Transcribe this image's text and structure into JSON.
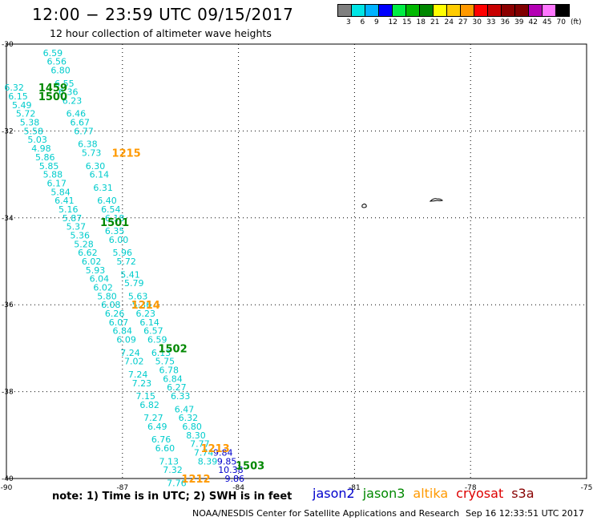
{
  "title": "12:00 − 23:59 UTC 09/15/2017",
  "subtitle": "12 hour collection of altimeter wave heights",
  "colorbar": {
    "colors": [
      "#7f7f7f",
      "#00e5e5",
      "#00b3ff",
      "#0000ff",
      "#00ee44",
      "#00b800",
      "#008800",
      "#ffff00",
      "#ffcc00",
      "#ff9900",
      "#ff0000",
      "#c80000",
      "#8b0000",
      "#800000",
      "#b400b4",
      "#ff77ff",
      "#000000"
    ],
    "labels": [
      "3",
      "6",
      "9",
      "12",
      "15",
      "18",
      "21",
      "24",
      "27",
      "30",
      "33",
      "36",
      "39",
      "42",
      "45",
      "70",
      "(ft)"
    ]
  },
  "chart_data": {
    "type": "scatter",
    "x_ticks": [
      "-90",
      "-87",
      "-84",
      "-81",
      "-78",
      "-75"
    ],
    "y_ticks": [
      "-30",
      "-32",
      "-34",
      "-36",
      "-38",
      "-40"
    ],
    "passes": [
      {
        "time": "1459",
        "color": "#008800",
        "lat": -31.0,
        "lon": -88.8
      },
      {
        "time": "1500",
        "color": "#008800",
        "lat": -31.2,
        "lon": -88.8
      },
      {
        "time": "1501",
        "color": "#008800",
        "lat": -34.1,
        "lon": -87.2
      },
      {
        "time": "1502",
        "color": "#008800",
        "lat": -37.0,
        "lon": -85.7
      },
      {
        "time": "1503",
        "color": "#008800",
        "lat": -39.7,
        "lon": -83.7
      },
      {
        "time": "1215",
        "color": "#ff9900",
        "lat": -32.5,
        "lon": -86.9
      },
      {
        "time": "1214",
        "color": "#ff9900",
        "lat": -36.0,
        "lon": -86.4
      },
      {
        "time": "1213",
        "color": "#ff9900",
        "lat": -39.3,
        "lon": -84.6
      },
      {
        "time": "1212",
        "color": "#ff9900",
        "lat": -40.0,
        "lon": -85.1
      }
    ],
    "tracks": [
      {
        "color": "#00cccc",
        "points": [
          {
            "lat": -30.2,
            "lon": -88.8,
            "v": "6.59"
          },
          {
            "lat": -30.4,
            "lon": -88.7,
            "v": "6.56"
          },
          {
            "lat": -30.6,
            "lon": -88.6,
            "v": "6.80"
          },
          {
            "lat": -30.9,
            "lon": -88.5,
            "v": "6.55"
          },
          {
            "lat": -31.1,
            "lon": -88.4,
            "v": "6.36"
          },
          {
            "lat": -31.3,
            "lon": -88.3,
            "v": "6.23"
          },
          {
            "lat": -31.6,
            "lon": -88.2,
            "v": "6.46"
          },
          {
            "lat": -31.8,
            "lon": -88.1,
            "v": "6.67"
          },
          {
            "lat": -32.0,
            "lon": -88.0,
            "v": "6.77"
          },
          {
            "lat": -32.3,
            "lon": -87.9,
            "v": "6.38"
          },
          {
            "lat": -32.5,
            "lon": -87.8,
            "v": "5.73"
          },
          {
            "lat": -32.8,
            "lon": -87.7,
            "v": "6.30"
          },
          {
            "lat": -33.0,
            "lon": -87.6,
            "v": "6.14"
          },
          {
            "lat": -33.3,
            "lon": -87.5,
            "v": "6.31"
          },
          {
            "lat": -33.6,
            "lon": -87.4,
            "v": "6.40"
          },
          {
            "lat": -33.8,
            "lon": -87.3,
            "v": "6.54"
          },
          {
            "lat": -34.0,
            "lon": -87.2,
            "v": "6.18"
          },
          {
            "lat": -34.3,
            "lon": -87.2,
            "v": "6.35"
          },
          {
            "lat": -34.5,
            "lon": -87.1,
            "v": "6.00"
          },
          {
            "lat": -34.8,
            "lon": -87.0,
            "v": "5.96"
          },
          {
            "lat": -35.0,
            "lon": -86.9,
            "v": "5.72"
          },
          {
            "lat": -35.3,
            "lon": -86.8,
            "v": "5.41"
          },
          {
            "lat": -35.5,
            "lon": -86.7,
            "v": "5.79"
          },
          {
            "lat": -35.8,
            "lon": -86.6,
            "v": "5.63"
          },
          {
            "lat": -36.0,
            "lon": -86.5,
            "v": "5.36"
          },
          {
            "lat": -36.2,
            "lon": -86.4,
            "v": "6.23"
          },
          {
            "lat": -36.4,
            "lon": -86.3,
            "v": "6.14"
          },
          {
            "lat": -36.6,
            "lon": -86.2,
            "v": "6.57"
          },
          {
            "lat": -36.8,
            "lon": -86.1,
            "v": "6.59"
          },
          {
            "lat": -37.1,
            "lon": -86.0,
            "v": "6.13"
          },
          {
            "lat": -37.3,
            "lon": -85.9,
            "v": "5.75"
          },
          {
            "lat": -37.5,
            "lon": -85.8,
            "v": "6.78"
          },
          {
            "lat": -37.7,
            "lon": -85.7,
            "v": "6.84"
          },
          {
            "lat": -37.9,
            "lon": -85.6,
            "v": "6.27"
          },
          {
            "lat": -38.1,
            "lon": -85.5,
            "v": "6.33"
          },
          {
            "lat": -38.4,
            "lon": -85.4,
            "v": "6.47"
          },
          {
            "lat": -38.6,
            "lon": -85.3,
            "v": "6.32"
          },
          {
            "lat": -38.8,
            "lon": -85.2,
            "v": "6.80"
          },
          {
            "lat": -39.0,
            "lon": -85.1,
            "v": "8.30"
          },
          {
            "lat": -39.2,
            "lon": -85.0,
            "v": "7.77"
          },
          {
            "lat": -39.4,
            "lon": -84.9,
            "v": "7.74"
          },
          {
            "lat": -39.6,
            "lon": -84.8,
            "v": "8.39"
          }
        ]
      },
      {
        "color": "#00cccc",
        "points": [
          {
            "lat": -31.0,
            "lon": -89.8,
            "v": "6.32"
          },
          {
            "lat": -31.2,
            "lon": -89.7,
            "v": "6.15"
          },
          {
            "lat": -31.4,
            "lon": -89.6,
            "v": "5.49"
          },
          {
            "lat": -31.6,
            "lon": -89.5,
            "v": "5.72"
          },
          {
            "lat": -31.8,
            "lon": -89.4,
            "v": "5.38"
          },
          {
            "lat": -32.0,
            "lon": -89.3,
            "v": "5.58"
          },
          {
            "lat": -32.2,
            "lon": -89.2,
            "v": "5.03"
          },
          {
            "lat": -32.4,
            "lon": -89.1,
            "v": "4.98"
          },
          {
            "lat": -32.6,
            "lon": -89.0,
            "v": "5.86"
          },
          {
            "lat": -32.8,
            "lon": -88.9,
            "v": "5.85"
          },
          {
            "lat": -33.0,
            "lon": -88.8,
            "v": "5.88"
          },
          {
            "lat": -33.2,
            "lon": -88.7,
            "v": "6.17"
          },
          {
            "lat": -33.4,
            "lon": -88.6,
            "v": "5.84"
          },
          {
            "lat": -33.6,
            "lon": -88.5,
            "v": "6.41"
          },
          {
            "lat": -33.8,
            "lon": -88.4,
            "v": "5.16"
          },
          {
            "lat": -34.0,
            "lon": -88.3,
            "v": "5.87"
          },
          {
            "lat": -34.2,
            "lon": -88.2,
            "v": "5.37"
          },
          {
            "lat": -34.4,
            "lon": -88.1,
            "v": "5.36"
          },
          {
            "lat": -34.6,
            "lon": -88.0,
            "v": "5.28"
          },
          {
            "lat": -34.8,
            "lon": -87.9,
            "v": "6.62"
          },
          {
            "lat": -35.0,
            "lon": -87.8,
            "v": "6.02"
          },
          {
            "lat": -35.2,
            "lon": -87.7,
            "v": "5.93"
          },
          {
            "lat": -35.4,
            "lon": -87.6,
            "v": "6.04"
          },
          {
            "lat": -35.6,
            "lon": -87.5,
            "v": "6.02"
          },
          {
            "lat": -35.8,
            "lon": -87.4,
            "v": "5.80"
          },
          {
            "lat": -36.0,
            "lon": -87.3,
            "v": "6.08"
          },
          {
            "lat": -36.2,
            "lon": -87.2,
            "v": "6.26"
          },
          {
            "lat": -36.4,
            "lon": -87.1,
            "v": "6.07"
          },
          {
            "lat": -36.6,
            "lon": -87.0,
            "v": "6.84"
          },
          {
            "lat": -36.8,
            "lon": -86.9,
            "v": "6.09"
          },
          {
            "lat": -37.1,
            "lon": -86.8,
            "v": "7.24"
          },
          {
            "lat": -37.3,
            "lon": -86.7,
            "v": "7.02"
          },
          {
            "lat": -37.6,
            "lon": -86.6,
            "v": "7.24"
          },
          {
            "lat": -37.8,
            "lon": -86.5,
            "v": "7.23"
          },
          {
            "lat": -38.1,
            "lon": -86.4,
            "v": "7.15"
          },
          {
            "lat": -38.3,
            "lon": -86.3,
            "v": "6.82"
          },
          {
            "lat": -38.6,
            "lon": -86.2,
            "v": "7.27"
          },
          {
            "lat": -38.8,
            "lon": -86.1,
            "v": "6.49"
          },
          {
            "lat": -39.1,
            "lon": -86.0,
            "v": "6.76"
          },
          {
            "lat": -39.3,
            "lon": -85.9,
            "v": "6.60"
          },
          {
            "lat": -39.6,
            "lon": -85.8,
            "v": "7.13"
          },
          {
            "lat": -39.8,
            "lon": -85.7,
            "v": "7.32"
          },
          {
            "lat": -40.1,
            "lon": -85.6,
            "v": "7.76"
          }
        ]
      },
      {
        "color": "#0000cc",
        "points": [
          {
            "lat": -39.4,
            "lon": -84.4,
            "v": "9.84"
          },
          {
            "lat": -39.6,
            "lon": -84.3,
            "v": "9.85"
          },
          {
            "lat": -39.8,
            "lon": -84.2,
            "v": "10.38"
          },
          {
            "lat": -40.0,
            "lon": -84.1,
            "v": "9.86"
          }
        ]
      }
    ]
  },
  "note": "note: 1) Time is in UTC; 2) SWH is in feet",
  "legend": [
    {
      "label": "jason2",
      "color": "#0000cc"
    },
    {
      "label": "jason3",
      "color": "#008800"
    },
    {
      "label": "altika",
      "color": "#ff9900"
    },
    {
      "label": "cryosat",
      "color": "#dd0000"
    },
    {
      "label": "s3a",
      "color": "#880000"
    }
  ],
  "credit": "NOAA/NESDIS Center for Satellite Applications and Research",
  "timestamp": "Sep 16 12:33:51 UTC 2017"
}
